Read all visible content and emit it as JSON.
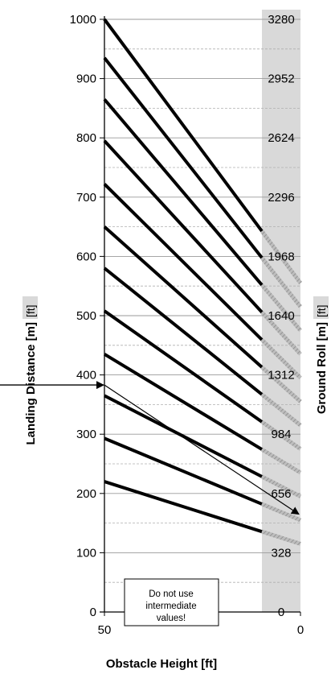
{
  "chart_data": {
    "type": "line",
    "xlabel": "Obstacle Height [ft]",
    "ylabel_left": "Landing Distance [m]",
    "ylabel_left_unit": "[ft]",
    "ylabel_right": "Ground Roll [m]",
    "ylabel_right_unit": "[ft]",
    "x_ticks": [
      "50",
      "0"
    ],
    "xlim": [
      50,
      0
    ],
    "ylim": [
      0,
      1000
    ],
    "y_ticks_left": [
      "0",
      "100",
      "200",
      "300",
      "400",
      "500",
      "600",
      "700",
      "800",
      "900",
      "1000"
    ],
    "y_ticks_right": [
      "0",
      "328",
      "656",
      "984",
      "1312",
      "1640",
      "1968",
      "2296",
      "2624",
      "2952",
      "3280"
    ],
    "note": [
      "Do not use",
      "intermediate",
      "values!"
    ],
    "series": [
      {
        "values": [
          220,
          115
        ]
      },
      {
        "values": [
          293,
          155
        ]
      },
      {
        "values": [
          365,
          195
        ]
      },
      {
        "values": [
          435,
          235
        ]
      },
      {
        "values": [
          508,
          275
        ]
      },
      {
        "values": [
          580,
          315
        ]
      },
      {
        "values": [
          650,
          355
        ]
      },
      {
        "values": [
          722,
          395
        ]
      },
      {
        "values": [
          795,
          435
        ]
      },
      {
        "values": [
          865,
          475
        ]
      },
      {
        "values": [
          935,
          515
        ]
      },
      {
        "values": [
          1000,
          555
        ]
      }
    ],
    "example": {
      "x_in": 50,
      "y_in": 383,
      "y_out": 165
    },
    "shaded_band_color": "#d9d9d9",
    "hatch_color": "#9a9a9a"
  }
}
